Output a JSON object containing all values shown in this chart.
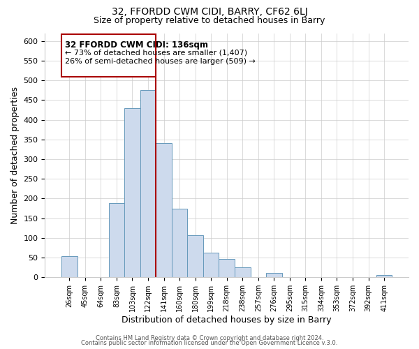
{
  "title_line1": "32, FFORDD CWM CIDI, BARRY, CF62 6LJ",
  "title_line2": "Size of property relative to detached houses in Barry",
  "xlabel": "Distribution of detached houses by size in Barry",
  "ylabel": "Number of detached properties",
  "bar_labels": [
    "26sqm",
    "45sqm",
    "64sqm",
    "83sqm",
    "103sqm",
    "122sqm",
    "141sqm",
    "160sqm",
    "180sqm",
    "199sqm",
    "218sqm",
    "238sqm",
    "257sqm",
    "276sqm",
    "295sqm",
    "315sqm",
    "334sqm",
    "353sqm",
    "372sqm",
    "392sqm",
    "411sqm"
  ],
  "bar_values": [
    53,
    0,
    0,
    188,
    430,
    475,
    340,
    175,
    107,
    62,
    46,
    25,
    0,
    11,
    0,
    0,
    0,
    0,
    0,
    0,
    5
  ],
  "bar_color": "#cddaed",
  "bar_edgecolor": "#6699bb",
  "vline_x_index": 5,
  "vline_color": "#aa0000",
  "ann_line1": "32 FFORDD CWM CIDI: 136sqm",
  "ann_line2": "← 73% of detached houses are smaller (1,407)",
  "ann_line3": "26% of semi-detached houses are larger (509) →",
  "ylim": [
    0,
    620
  ],
  "yticks": [
    0,
    50,
    100,
    150,
    200,
    250,
    300,
    350,
    400,
    450,
    500,
    550,
    600
  ],
  "footer_line1": "Contains HM Land Registry data © Crown copyright and database right 2024.",
  "footer_line2": "Contains public sector information licensed under the Open Government Licence v.3.0.",
  "bg_color": "#ffffff",
  "grid_color": "#cccccc"
}
